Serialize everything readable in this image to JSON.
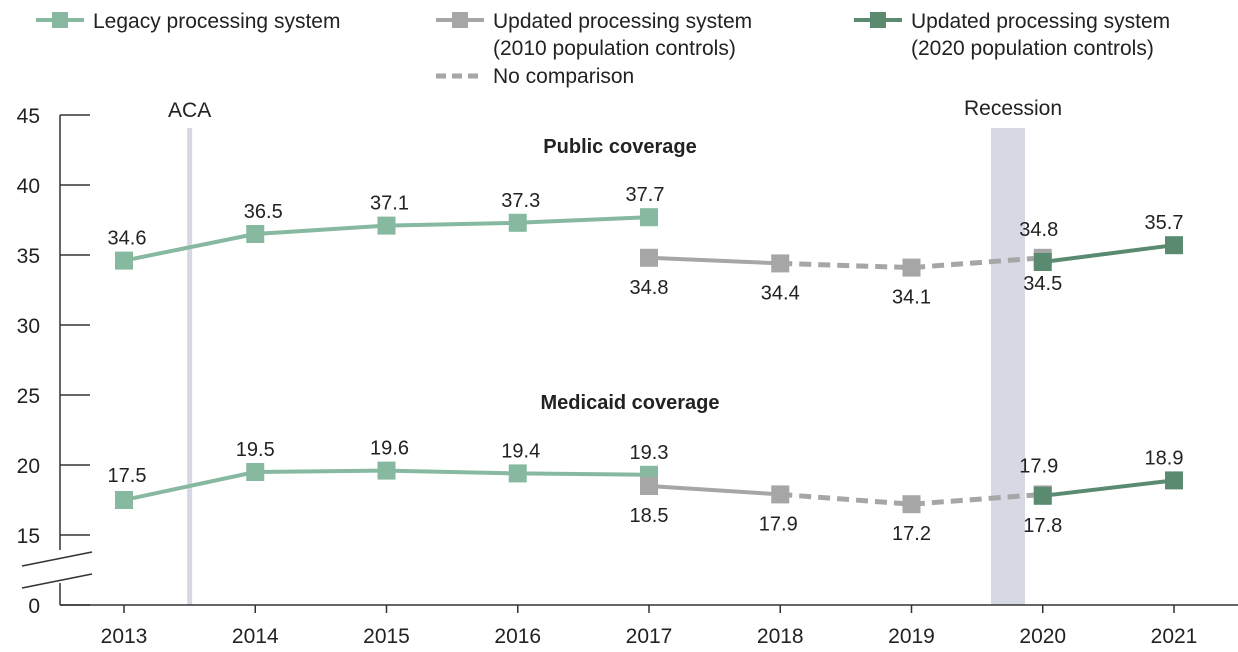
{
  "colors": {
    "legacy": "#86b9a0",
    "updated2010": "#a6a6a6",
    "updated2020": "#5a8a70",
    "nocomp": "#a6a6a6",
    "band": "#d6d9e3",
    "axis": "#333333"
  },
  "legend": {
    "legacy": "Legacy processing system",
    "updated2010_line1": "Updated processing system",
    "updated2010_line2": "(2010 population controls)",
    "updated2020_line1": "Updated processing system",
    "updated2020_line2": "(2020 population controls)",
    "nocomp": "No comparison"
  },
  "chart_data": {
    "type": "line",
    "x": [
      2013,
      2014,
      2015,
      2016,
      2017,
      2018,
      2019,
      2020,
      2021
    ],
    "xticks": [
      "2013",
      "2014",
      "2015",
      "2016",
      "2017",
      "2018",
      "2019",
      "2020",
      "2021"
    ],
    "yticks": [
      "0",
      "15",
      "20",
      "25",
      "30",
      "35",
      "40",
      "45"
    ],
    "ylim": [
      0,
      45
    ],
    "axis_break": "between 0 and 15",
    "grid": false,
    "legend_position": "top",
    "annotations": [
      {
        "label": "ACA",
        "x": 2013.5,
        "kind": "line"
      },
      {
        "label": "Recession",
        "x_from": 2019.6,
        "x_to": 2019.85,
        "kind": "band"
      }
    ],
    "panels": [
      {
        "title": "Public coverage",
        "series": [
          {
            "style": "legacy",
            "x": [
              2013,
              2014,
              2015,
              2016,
              2017
            ],
            "y": [
              34.6,
              36.5,
              37.1,
              37.3,
              37.7
            ],
            "labels": [
              "34.6",
              "36.5",
              "37.1",
              "37.3",
              "37.7"
            ]
          },
          {
            "style": "updated2010",
            "x": [
              2017,
              2018
            ],
            "y": [
              34.8,
              34.4
            ],
            "labels": [
              "34.8",
              "34.4"
            ]
          },
          {
            "style": "nocomp",
            "x": [
              2018,
              2019,
              2020
            ],
            "y": [
              34.4,
              34.1,
              34.8
            ]
          },
          {
            "style": "updated2010",
            "x": [
              2019,
              2020
            ],
            "y": [
              34.1,
              34.8
            ],
            "labels": [
              "34.1",
              "34.8"
            ],
            "connected": false
          },
          {
            "style": "updated2020",
            "x": [
              2020,
              2021
            ],
            "y": [
              34.5,
              35.7
            ],
            "labels": [
              "34.5",
              "35.7"
            ]
          }
        ]
      },
      {
        "title": "Medicaid coverage",
        "series": [
          {
            "style": "legacy",
            "x": [
              2013,
              2014,
              2015,
              2016,
              2017
            ],
            "y": [
              17.5,
              19.5,
              19.6,
              19.4,
              19.3
            ],
            "labels": [
              "17.5",
              "19.5",
              "19.6",
              "19.4",
              "19.3"
            ]
          },
          {
            "style": "updated2010",
            "x": [
              2017,
              2018
            ],
            "y": [
              18.5,
              17.9
            ],
            "labels": [
              "18.5",
              "17.9"
            ]
          },
          {
            "style": "nocomp",
            "x": [
              2018,
              2019,
              2020
            ],
            "y": [
              17.9,
              17.2,
              17.9
            ]
          },
          {
            "style": "updated2010",
            "x": [
              2019,
              2020
            ],
            "y": [
              17.2,
              17.9
            ],
            "labels": [
              "17.2",
              "17.9"
            ],
            "connected": false
          },
          {
            "style": "updated2020",
            "x": [
              2020,
              2021
            ],
            "y": [
              17.8,
              18.9
            ],
            "labels": [
              "17.8",
              "18.9"
            ]
          }
        ]
      }
    ]
  }
}
